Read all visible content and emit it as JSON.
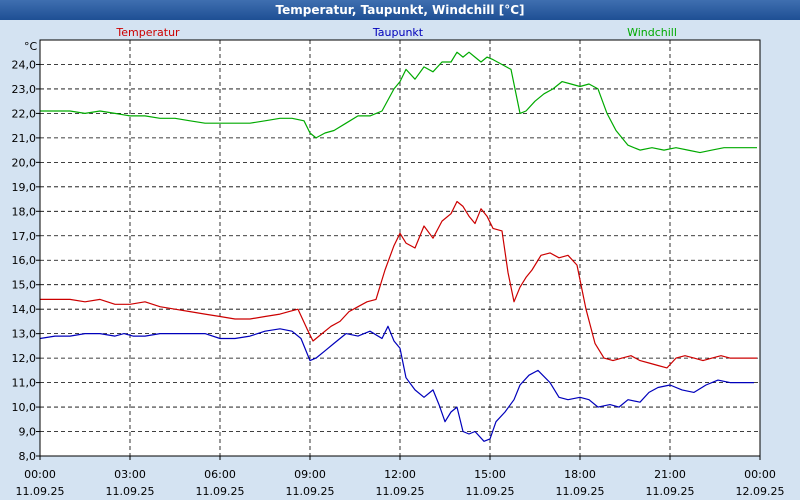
{
  "window": {
    "title": "Temperatur, Taupunkt, Windchill [°C]"
  },
  "chart_data": {
    "type": "line",
    "title": "Temperatur, Taupunkt, Windchill [°C]",
    "ylabel": "°C",
    "ylim": [
      8.0,
      25.0
    ],
    "yticks": [
      "8,0",
      "9,0",
      "10,0",
      "11,0",
      "12,0",
      "13,0",
      "14,0",
      "15,0",
      "16,0",
      "17,0",
      "18,0",
      "19,0",
      "20,0",
      "21,0",
      "22,0",
      "23,0",
      "24,0"
    ],
    "xlim": [
      0,
      24
    ],
    "xticks": [
      {
        "time": "00:00",
        "date": "11.09.25"
      },
      {
        "time": "03:00",
        "date": "11.09.25"
      },
      {
        "time": "06:00",
        "date": "11.09.25"
      },
      {
        "time": "09:00",
        "date": "11.09.25"
      },
      {
        "time": "12:00",
        "date": "11.09.25"
      },
      {
        "time": "15:00",
        "date": "11.09.25"
      },
      {
        "time": "18:00",
        "date": "11.09.25"
      },
      {
        "time": "21:00",
        "date": "11.09.25"
      },
      {
        "time": "00:00",
        "date": "12.09.25"
      }
    ],
    "grid": true,
    "legend_position": "top",
    "series": [
      {
        "name": "Temperatur",
        "color": "#cc0000",
        "x": [
          0,
          1,
          1.5,
          2,
          2.5,
          3,
          3.5,
          4,
          4.5,
          5,
          5.5,
          6,
          6.5,
          7,
          7.5,
          8,
          8.3,
          8.6,
          8.9,
          9.1,
          9.4,
          9.7,
          10,
          10.3,
          10.6,
          10.9,
          11.2,
          11.5,
          11.8,
          12,
          12.2,
          12.5,
          12.8,
          13.1,
          13.4,
          13.7,
          13.9,
          14.1,
          14.3,
          14.5,
          14.7,
          14.9,
          15.1,
          15.4,
          15.6,
          15.8,
          16,
          16.2,
          16.4,
          16.7,
          17,
          17.3,
          17.6,
          17.9,
          18.2,
          18.5,
          18.8,
          19.1,
          19.4,
          19.7,
          20,
          20.3,
          20.6,
          20.9,
          21.2,
          21.5,
          21.8,
          22.1,
          22.4,
          22.7,
          23,
          23.3,
          23.6,
          23.9
        ],
        "y": [
          14.4,
          14.4,
          14.3,
          14.4,
          14.2,
          14.2,
          14.3,
          14.1,
          14.0,
          13.9,
          13.8,
          13.7,
          13.6,
          13.6,
          13.7,
          13.8,
          13.9,
          14.0,
          13.2,
          12.7,
          13.0,
          13.3,
          13.5,
          13.9,
          14.1,
          14.3,
          14.4,
          15.6,
          16.6,
          17.1,
          16.7,
          16.5,
          17.4,
          16.9,
          17.6,
          17.9,
          18.4,
          18.2,
          17.8,
          17.5,
          18.1,
          17.8,
          17.3,
          17.2,
          15.5,
          14.3,
          14.9,
          15.3,
          15.6,
          16.2,
          16.3,
          16.1,
          16.2,
          15.8,
          14.0,
          12.6,
          12.0,
          11.9,
          12.0,
          12.1,
          11.9,
          11.8,
          11.7,
          11.6,
          12.0,
          12.1,
          12.0,
          11.9,
          12.0,
          12.1,
          12.0,
          12.0,
          12.0,
          12.0
        ]
      },
      {
        "name": "Taupunkt",
        "color": "#0000bb",
        "x": [
          0,
          0.5,
          1,
          1.5,
          2,
          2.5,
          2.8,
          3.1,
          3.5,
          4,
          4.5,
          5,
          5.5,
          6,
          6.5,
          7,
          7.5,
          8,
          8.4,
          8.7,
          9,
          9.2,
          9.5,
          9.8,
          10.2,
          10.6,
          11,
          11.4,
          11.6,
          11.8,
          12,
          12.2,
          12.5,
          12.8,
          13.1,
          13.3,
          13.5,
          13.7,
          13.9,
          14.1,
          14.3,
          14.5,
          14.8,
          15,
          15.2,
          15.5,
          15.8,
          16,
          16.3,
          16.6,
          17,
          17.3,
          17.6,
          18,
          18.3,
          18.6,
          19,
          19.3,
          19.6,
          20,
          20.3,
          20.6,
          21,
          21.4,
          21.8,
          22.2,
          22.6,
          23,
          23.4,
          23.8
        ],
        "y": [
          12.8,
          12.9,
          12.9,
          13.0,
          13.0,
          12.9,
          13.0,
          12.9,
          12.9,
          13.0,
          13.0,
          13.0,
          13.0,
          12.8,
          12.8,
          12.9,
          13.1,
          13.2,
          13.1,
          12.8,
          11.9,
          12.0,
          12.3,
          12.6,
          13.0,
          12.9,
          13.1,
          12.8,
          13.3,
          12.7,
          12.4,
          11.2,
          10.7,
          10.4,
          10.7,
          10.1,
          9.4,
          9.8,
          10.0,
          9.0,
          8.9,
          9.0,
          8.6,
          8.7,
          9.4,
          9.8,
          10.3,
          10.9,
          11.3,
          11.5,
          11.0,
          10.4,
          10.3,
          10.4,
          10.3,
          10.0,
          10.1,
          10.0,
          10.3,
          10.2,
          10.6,
          10.8,
          10.9,
          10.7,
          10.6,
          10.9,
          11.1,
          11.0,
          11.0,
          11.0
        ]
      },
      {
        "name": "Windchill",
        "color": "#00aa00",
        "x": [
          0,
          1,
          1.5,
          2,
          2.5,
          3,
          3.5,
          4,
          4.5,
          5,
          5.5,
          6,
          6.5,
          7,
          7.5,
          8,
          8.4,
          8.8,
          9,
          9.2,
          9.5,
          9.8,
          10.2,
          10.6,
          11,
          11.4,
          11.8,
          12,
          12.2,
          12.5,
          12.8,
          13.1,
          13.4,
          13.7,
          13.9,
          14.1,
          14.3,
          14.5,
          14.7,
          14.9,
          15.1,
          15.4,
          15.7,
          16,
          16.2,
          16.5,
          16.8,
          17.1,
          17.4,
          17.7,
          18,
          18.3,
          18.6,
          18.9,
          19.2,
          19.6,
          20,
          20.4,
          20.8,
          21.2,
          21.6,
          22,
          22.4,
          22.8,
          23.2,
          23.6,
          23.9
        ],
        "y": [
          22.1,
          22.1,
          22.0,
          22.1,
          22.0,
          21.9,
          21.9,
          21.8,
          21.8,
          21.7,
          21.6,
          21.6,
          21.6,
          21.6,
          21.7,
          21.8,
          21.8,
          21.7,
          21.2,
          21.0,
          21.2,
          21.3,
          21.6,
          21.9,
          21.9,
          22.1,
          23.0,
          23.3,
          23.8,
          23.4,
          23.9,
          23.7,
          24.1,
          24.1,
          24.5,
          24.3,
          24.5,
          24.3,
          24.1,
          24.3,
          24.2,
          24.0,
          23.8,
          22.0,
          22.1,
          22.5,
          22.8,
          23.0,
          23.3,
          23.2,
          23.1,
          23.2,
          23.0,
          22.0,
          21.3,
          20.7,
          20.5,
          20.6,
          20.5,
          20.6,
          20.5,
          20.4,
          20.5,
          20.6,
          20.6,
          20.6,
          20.6
        ]
      }
    ]
  }
}
